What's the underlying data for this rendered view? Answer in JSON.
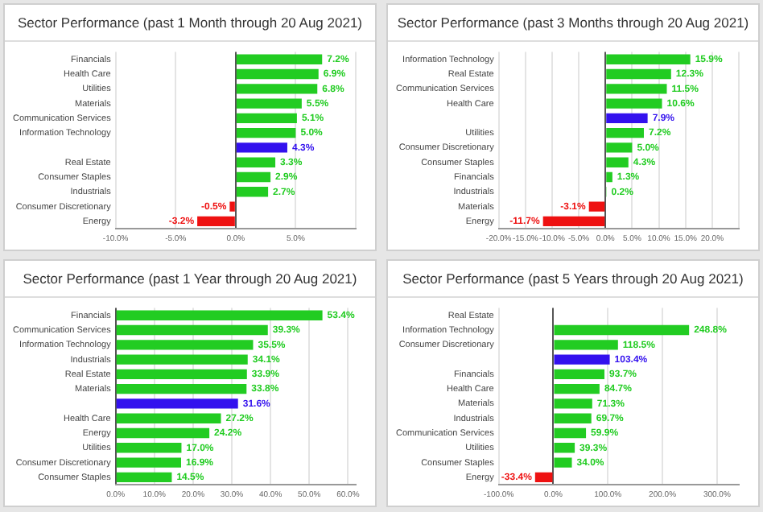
{
  "chart_data": [
    {
      "type": "bar",
      "orientation": "horizontal",
      "title": "Sector Performance (past 1 Month through 20 Aug 2021)",
      "categories": [
        "Financials",
        "Health Care",
        "Utilities",
        "Materials",
        "Communication Services",
        "Information Technology",
        null,
        "Real Estate",
        "Consumer Staples",
        "Industrials",
        "Consumer Discretionary",
        "Energy"
      ],
      "values": [
        7.2,
        6.9,
        6.8,
        5.5,
        5.1,
        5.0,
        4.3,
        3.3,
        2.9,
        2.7,
        -0.5,
        -3.2
      ],
      "colors": [
        "#22cc22",
        "#22cc22",
        "#22cc22",
        "#22cc22",
        "#22cc22",
        "#22cc22",
        "#3311ee",
        "#22cc22",
        "#22cc22",
        "#22cc22",
        "#ee1111",
        "#ee1111"
      ],
      "value_labels": [
        "7.2%",
        "6.9%",
        "6.8%",
        "5.5%",
        "5.1%",
        "5.0%",
        "4.3%",
        "3.3%",
        "2.9%",
        "2.7%",
        "-0.5%",
        "-3.2%"
      ],
      "xlim": [
        -10,
        10
      ],
      "xticks": [
        {
          "value": -10,
          "label": "-10.0%"
        },
        {
          "value": -5,
          "label": "-5.0%"
        },
        {
          "value": 0,
          "label": "0.0%"
        },
        {
          "value": 5,
          "label": "5.0%"
        },
        {
          "value": 10,
          "label": null
        }
      ],
      "grid": "x"
    },
    {
      "type": "bar",
      "orientation": "horizontal",
      "title": "Sector Performance (past 3 Months through 20 Aug 2021)",
      "categories": [
        "Information Technology",
        "Real Estate",
        "Communication Services",
        "Health Care",
        null,
        "Utilities",
        "Consumer Discretionary",
        "Consumer Staples",
        "Financials",
        "Industrials",
        "Materials",
        "Energy"
      ],
      "values": [
        15.9,
        12.3,
        11.5,
        10.6,
        7.9,
        7.2,
        5.0,
        4.3,
        1.3,
        0.2,
        -3.1,
        -11.7
      ],
      "colors": [
        "#22cc22",
        "#22cc22",
        "#22cc22",
        "#22cc22",
        "#3311ee",
        "#22cc22",
        "#22cc22",
        "#22cc22",
        "#22cc22",
        "#22cc22",
        "#ee1111",
        "#ee1111"
      ],
      "value_labels": [
        "15.9%",
        "12.3%",
        "11.5%",
        "10.6%",
        "7.9%",
        "7.2%",
        "5.0%",
        "4.3%",
        "1.3%",
        "0.2%",
        "-3.1%",
        "-11.7%"
      ],
      "xlim": [
        -20,
        25
      ],
      "xticks": [
        {
          "value": -20,
          "label": "-20.0%"
        },
        {
          "value": -15,
          "label": "-15.0%"
        },
        {
          "value": -10,
          "label": "-10.0%"
        },
        {
          "value": -5,
          "label": "-5.0%"
        },
        {
          "value": 0,
          "label": "0.0%"
        },
        {
          "value": 5,
          "label": "5.0%"
        },
        {
          "value": 10,
          "label": "10.0%"
        },
        {
          "value": 15,
          "label": "15.0%"
        },
        {
          "value": 20,
          "label": "20.0%"
        },
        {
          "value": 25,
          "label": null
        }
      ],
      "grid": "x"
    },
    {
      "type": "bar",
      "orientation": "horizontal",
      "title": "Sector Performance (past 1 Year through 20 Aug 2021)",
      "categories": [
        "Financials",
        "Communication Services",
        "Information Technology",
        "Industrials",
        "Real Estate",
        "Materials",
        null,
        "Health Care",
        "Energy",
        "Utilities",
        "Consumer Discretionary",
        "Consumer Staples"
      ],
      "values": [
        53.4,
        39.3,
        35.5,
        34.1,
        33.9,
        33.8,
        31.6,
        27.2,
        24.2,
        17.0,
        16.9,
        14.5
      ],
      "colors": [
        "#22cc22",
        "#22cc22",
        "#22cc22",
        "#22cc22",
        "#22cc22",
        "#22cc22",
        "#3311ee",
        "#22cc22",
        "#22cc22",
        "#22cc22",
        "#22cc22",
        "#22cc22"
      ],
      "value_labels": [
        "53.4%",
        "39.3%",
        "35.5%",
        "34.1%",
        "33.9%",
        "33.8%",
        "31.6%",
        "27.2%",
        "24.2%",
        "17.0%",
        "16.9%",
        "14.5%"
      ],
      "xlim": [
        0,
        62
      ],
      "xticks": [
        {
          "value": 0,
          "label": "0.0%"
        },
        {
          "value": 10,
          "label": "10.0%"
        },
        {
          "value": 20,
          "label": "20.0%"
        },
        {
          "value": 30,
          "label": "30.0%"
        },
        {
          "value": 40,
          "label": "40.0%"
        },
        {
          "value": 50,
          "label": "50.0%"
        },
        {
          "value": 60,
          "label": "60.0%"
        }
      ],
      "grid": "x"
    },
    {
      "type": "bar",
      "orientation": "horizontal",
      "title": "Sector Performance (past 5 Years through 20 Aug 2021)",
      "categories": [
        "Real Estate",
        "Information Technology",
        "Consumer Discretionary",
        null,
        "Financials",
        "Health Care",
        "Materials",
        "Industrials",
        "Communication Services",
        "Utilities",
        "Consumer Staples",
        "Energy"
      ],
      "values": [
        null,
        248.8,
        118.5,
        103.4,
        93.7,
        84.7,
        71.3,
        69.7,
        59.9,
        39.3,
        34.0,
        -33.4
      ],
      "colors": [
        "#22cc22",
        "#22cc22",
        "#22cc22",
        "#3311ee",
        "#22cc22",
        "#22cc22",
        "#22cc22",
        "#22cc22",
        "#22cc22",
        "#22cc22",
        "#22cc22",
        "#ee1111"
      ],
      "value_labels": [
        null,
        "248.8%",
        "118.5%",
        "103.4%",
        "93.7%",
        "84.7%",
        "71.3%",
        "69.7%",
        "59.9%",
        "39.3%",
        "34.0%",
        "-33.4%"
      ],
      "xlim": [
        -100,
        340
      ],
      "xticks": [
        {
          "value": -100,
          "label": "-100.0%"
        },
        {
          "value": 0,
          "label": "0.0%"
        },
        {
          "value": 100,
          "label": "100.0%"
        },
        {
          "value": 200,
          "label": "200.0%"
        },
        {
          "value": 300,
          "label": "300.0%"
        }
      ],
      "grid": "x"
    }
  ]
}
